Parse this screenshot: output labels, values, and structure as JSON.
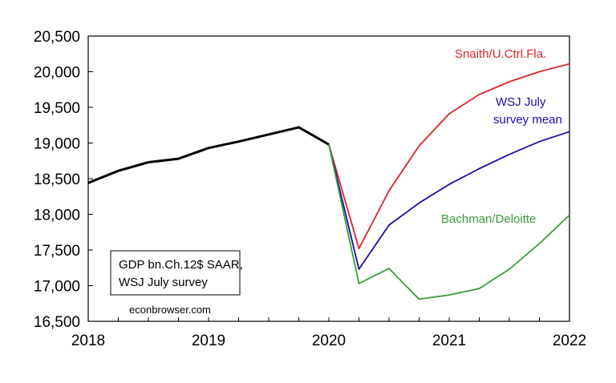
{
  "chart_data": {
    "type": "line",
    "title": "",
    "xlabel": "",
    "ylabel": "",
    "xlim": [
      2018,
      2022
    ],
    "ylim": [
      16500,
      20500
    ],
    "x_ticks": [
      {
        "value": 2018,
        "label": "2018"
      },
      {
        "value": 2019,
        "label": "2019"
      },
      {
        "value": 2020,
        "label": "2020"
      },
      {
        "value": 2021,
        "label": "2021"
      },
      {
        "value": 2022,
        "label": "2022"
      }
    ],
    "y_ticks": [
      {
        "value": 16500,
        "label": "16,500"
      },
      {
        "value": 17000,
        "label": "17,000"
      },
      {
        "value": 17500,
        "label": "17,500"
      },
      {
        "value": 18000,
        "label": "18,000"
      },
      {
        "value": 18500,
        "label": "18,500"
      },
      {
        "value": 19000,
        "label": "19,000"
      },
      {
        "value": 19500,
        "label": "19,500"
      },
      {
        "value": 20000,
        "label": "20,000"
      },
      {
        "value": 20500,
        "label": "20,500"
      }
    ],
    "grid": false,
    "series": [
      {
        "name": "",
        "color": "#000000",
        "points": [
          [
            2018.0,
            18440
          ],
          [
            2018.25,
            18610
          ],
          [
            2018.5,
            18730
          ],
          [
            2018.75,
            18780
          ],
          [
            2019.0,
            18930
          ],
          [
            2019.25,
            19020
          ],
          [
            2019.5,
            19120
          ],
          [
            2019.75,
            19220
          ],
          [
            2020.0,
            18980
          ]
        ]
      },
      {
        "name": "Snaith/U.Ctrl.Fla.",
        "color": "#d62728",
        "points": [
          [
            2020.0,
            18980
          ],
          [
            2020.25,
            17520
          ],
          [
            2020.5,
            18330
          ],
          [
            2020.75,
            18960
          ],
          [
            2021.0,
            19410
          ],
          [
            2021.25,
            19680
          ],
          [
            2021.5,
            19860
          ],
          [
            2021.75,
            20000
          ],
          [
            2022.0,
            20110
          ]
        ]
      },
      {
        "name": "WSJ July\nsurvey mean",
        "color": "#1a0fa8",
        "points": [
          [
            2020.0,
            18980
          ],
          [
            2020.25,
            17230
          ],
          [
            2020.5,
            17850
          ],
          [
            2020.75,
            18160
          ],
          [
            2021.0,
            18420
          ],
          [
            2021.25,
            18640
          ],
          [
            2021.5,
            18840
          ],
          [
            2021.75,
            19020
          ],
          [
            2022.0,
            19160
          ]
        ]
      },
      {
        "name": "Bachman/Deloitte",
        "color": "#3a9a3a",
        "points": [
          [
            2020.0,
            18980
          ],
          [
            2020.25,
            17030
          ],
          [
            2020.5,
            17240
          ],
          [
            2020.75,
            16810
          ],
          [
            2021.0,
            16870
          ],
          [
            2021.25,
            16960
          ],
          [
            2021.5,
            17230
          ],
          [
            2021.75,
            17590
          ],
          [
            2022.0,
            17990
          ]
        ]
      }
    ],
    "annotations": {
      "box_lines": [
        "GDP bn.Ch.12$ SAAR,",
        "WSJ July survey"
      ],
      "credit": "econbrowser.com"
    }
  }
}
